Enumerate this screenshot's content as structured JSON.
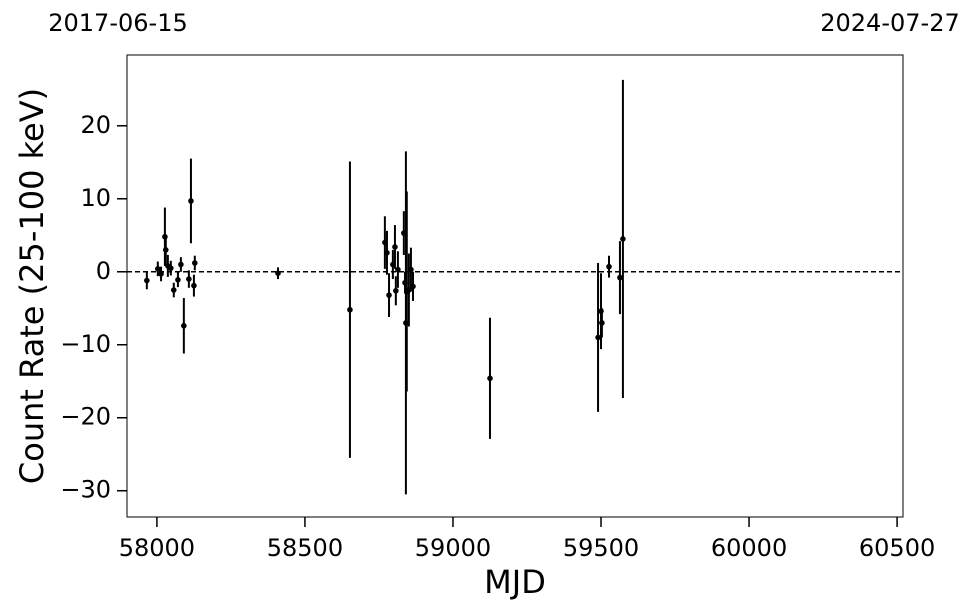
{
  "chart_data": {
    "type": "scatter",
    "xlabel": "MJD",
    "ylabel": "Count Rate (25-100 keV)",
    "annotations": [
      "2017-06-15",
      "2024-07-27"
    ],
    "xlim": [
      57899,
      60520
    ],
    "ylim": [
      -33.6,
      29.7
    ],
    "xticks": [
      58000,
      58500,
      59000,
      59500,
      60000,
      60500
    ],
    "yticks": [
      {
        "value": -30,
        "label": "−30"
      },
      {
        "value": -20,
        "label": "−20"
      },
      {
        "value": -10,
        "label": "−10"
      },
      0,
      10,
      20
    ],
    "hline": 0,
    "hline_color": "#000000",
    "series": [
      {
        "color": "#000000",
        "x": [
          57966,
          58003,
          58014,
          58027,
          58030,
          58037,
          58047,
          58057,
          58071,
          58081,
          58091,
          58108,
          58115,
          58125,
          58128,
          58409,
          58652,
          58770,
          58777,
          58784,
          58797,
          58804,
          58807,
          58814,
          58834,
          58838,
          58841,
          58844,
          58851,
          58858,
          58865,
          59125,
          59490,
          59500,
          59503,
          59527,
          59564,
          59574
        ],
        "values": [
          -1.2,
          0.4,
          -0.3,
          4.8,
          3,
          0.8,
          0.5,
          -2.5,
          -1.1,
          1,
          -7.4,
          -1,
          9.7,
          -1.9,
          1.2,
          -0.2,
          -5.2,
          4,
          2.6,
          -3.2,
          1,
          3.4,
          -2.6,
          0.3,
          5.3,
          -1.5,
          -7,
          -2.7,
          -2.5,
          0.3,
          -2,
          -14.6,
          -9,
          -5.4,
          -7,
          0.7,
          -0.8,
          4.5
        ],
        "errors": [
          1.2,
          1,
          1,
          4,
          2,
          1.5,
          1,
          1,
          1,
          1,
          3.8,
          1.2,
          5.8,
          1.5,
          1,
          0.8,
          20.3,
          3.6,
          3,
          3,
          2,
          3,
          2,
          2.5,
          3,
          1.5,
          23.5,
          13.7,
          5,
          3,
          2,
          8.3,
          10.2,
          5.2,
          2,
          1.5,
          5,
          21.8
        ]
      }
    ]
  }
}
